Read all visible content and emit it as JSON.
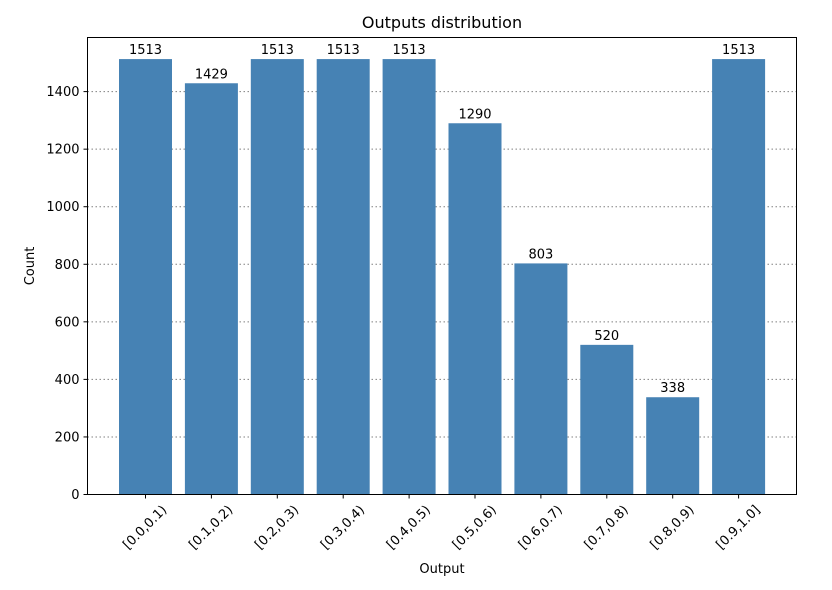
{
  "chart_data": {
    "type": "bar",
    "title": "Outputs distribution",
    "xlabel": "Output",
    "ylabel": "Count",
    "categories": [
      "[0.0,0.1)",
      "[0.1,0.2)",
      "[0.2,0.3)",
      "[0.3,0.4)",
      "[0.4,0.5)",
      "[0.5,0.6)",
      "[0.6,0.7)",
      "[0.7,0.8)",
      "[0.8,0.9)",
      "[0.9,1.0]"
    ],
    "values": [
      1513,
      1429,
      1513,
      1513,
      1513,
      1290,
      803,
      520,
      338,
      1513
    ],
    "ylim": [
      0,
      1588
    ],
    "yticks": [
      0,
      200,
      400,
      600,
      800,
      1000,
      1200,
      1400
    ],
    "grid": "horizontal dotted",
    "bar_color": "#4682b4",
    "data_labels": true
  }
}
